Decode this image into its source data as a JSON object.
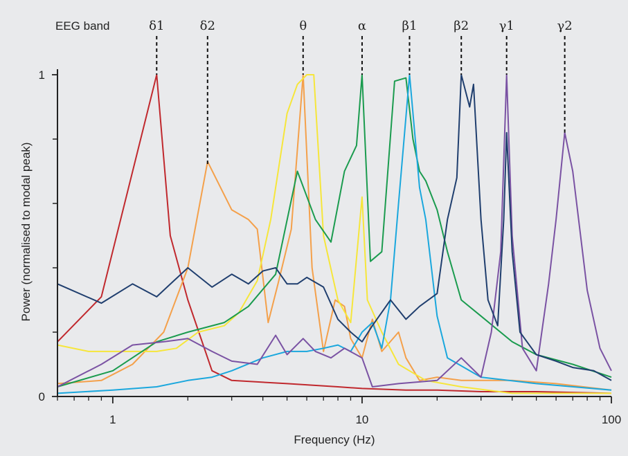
{
  "chart_data": {
    "type": "line",
    "title": "",
    "xlabel": "Frequency (Hz)",
    "ylabel": "Power (normalised to modal peak)",
    "xscale": "log",
    "xlim": [
      0.6,
      100
    ],
    "ylim": [
      0,
      1
    ],
    "x_tick_labels": [
      {
        "value": 1,
        "label": "1"
      },
      {
        "value": 10,
        "label": "10"
      },
      {
        "value": 100,
        "label": "100"
      }
    ],
    "y_tick_labels": [
      {
        "value": 0,
        "label": "0"
      },
      {
        "value": 1,
        "label": "1"
      }
    ],
    "y_minor_ticks": [
      0.2,
      0.4,
      0.6,
      0.8
    ],
    "band_header": "EEG band",
    "bands": [
      {
        "label": "δ1",
        "freq": 1.5,
        "peak": 1.0
      },
      {
        "label": "δ2",
        "freq": 2.4,
        "peak": 0.72
      },
      {
        "label": "θ",
        "freq": 5.8,
        "peak": 1.0
      },
      {
        "label": "α",
        "freq": 10,
        "peak": 1.0
      },
      {
        "label": "β1",
        "freq": 15.5,
        "peak": 1.0
      },
      {
        "label": "β2",
        "freq": 25,
        "peak": 1.0
      },
      {
        "label": "γ1",
        "freq": 38,
        "peak": 1.0
      },
      {
        "label": "γ2",
        "freq": 65,
        "peak": 0.82
      }
    ],
    "series": [
      {
        "color": "#c0282d",
        "points": [
          [
            0.6,
            0.17
          ],
          [
            0.9,
            0.31
          ],
          [
            1.5,
            1.0
          ],
          [
            1.7,
            0.5
          ],
          [
            2.0,
            0.3
          ],
          [
            2.5,
            0.08
          ],
          [
            3.0,
            0.05
          ],
          [
            5,
            0.04
          ],
          [
            8,
            0.03
          ],
          [
            10,
            0.025
          ],
          [
            15,
            0.02
          ],
          [
            20,
            0.02
          ],
          [
            30,
            0.015
          ],
          [
            50,
            0.015
          ],
          [
            100,
            0.01
          ]
        ]
      },
      {
        "color": "#f4a04a",
        "points": [
          [
            0.6,
            0.04
          ],
          [
            0.9,
            0.05
          ],
          [
            1.2,
            0.1
          ],
          [
            1.6,
            0.2
          ],
          [
            2.0,
            0.4
          ],
          [
            2.4,
            0.73
          ],
          [
            3.0,
            0.58
          ],
          [
            3.5,
            0.55
          ],
          [
            3.8,
            0.52
          ],
          [
            4.2,
            0.23
          ],
          [
            4.6,
            0.35
          ],
          [
            5.2,
            0.52
          ],
          [
            5.8,
            1.0
          ],
          [
            6.3,
            0.4
          ],
          [
            7.0,
            0.14
          ],
          [
            7.8,
            0.3
          ],
          [
            8.5,
            0.28
          ],
          [
            9.0,
            0.18
          ],
          [
            10,
            0.12
          ],
          [
            11,
            0.24
          ],
          [
            12,
            0.14
          ],
          [
            14,
            0.2
          ],
          [
            15,
            0.12
          ],
          [
            17,
            0.05
          ],
          [
            20,
            0.06
          ],
          [
            25,
            0.05
          ],
          [
            30,
            0.05
          ],
          [
            40,
            0.05
          ],
          [
            60,
            0.04
          ],
          [
            100,
            0.02
          ]
        ]
      },
      {
        "color": "#f6e63a",
        "points": [
          [
            0.6,
            0.16
          ],
          [
            0.8,
            0.14
          ],
          [
            1.0,
            0.14
          ],
          [
            1.5,
            0.14
          ],
          [
            1.8,
            0.15
          ],
          [
            2.2,
            0.2
          ],
          [
            2.8,
            0.22
          ],
          [
            3.2,
            0.26
          ],
          [
            3.8,
            0.36
          ],
          [
            4.3,
            0.55
          ],
          [
            5.0,
            0.88
          ],
          [
            5.5,
            0.97
          ],
          [
            6.0,
            1.0
          ],
          [
            6.4,
            1.0
          ],
          [
            7.0,
            0.5
          ],
          [
            8.0,
            0.3
          ],
          [
            9.0,
            0.23
          ],
          [
            10,
            0.62
          ],
          [
            10.5,
            0.3
          ],
          [
            12,
            0.2
          ],
          [
            14,
            0.1
          ],
          [
            18,
            0.05
          ],
          [
            25,
            0.03
          ],
          [
            40,
            0.01
          ],
          [
            100,
            0.01
          ]
        ]
      },
      {
        "color": "#1a9b4e",
        "points": [
          [
            0.6,
            0.03
          ],
          [
            1.0,
            0.08
          ],
          [
            1.5,
            0.17
          ],
          [
            2.0,
            0.2
          ],
          [
            2.8,
            0.23
          ],
          [
            3.5,
            0.28
          ],
          [
            4.5,
            0.38
          ],
          [
            5.5,
            0.7
          ],
          [
            6.5,
            0.55
          ],
          [
            7.5,
            0.48
          ],
          [
            8.5,
            0.7
          ],
          [
            9.5,
            0.78
          ],
          [
            10,
            1.0
          ],
          [
            10.8,
            0.42
          ],
          [
            12,
            0.45
          ],
          [
            13.5,
            0.98
          ],
          [
            15,
            0.99
          ],
          [
            16,
            0.8
          ],
          [
            17,
            0.7
          ],
          [
            18,
            0.67
          ],
          [
            20,
            0.58
          ],
          [
            22,
            0.45
          ],
          [
            25,
            0.3
          ],
          [
            30,
            0.25
          ],
          [
            40,
            0.17
          ],
          [
            50,
            0.13
          ],
          [
            70,
            0.1
          ],
          [
            100,
            0.06
          ]
        ]
      },
      {
        "color": "#1aa7dd",
        "points": [
          [
            0.6,
            0.01
          ],
          [
            1.0,
            0.02
          ],
          [
            1.5,
            0.03
          ],
          [
            2.0,
            0.05
          ],
          [
            2.5,
            0.06
          ],
          [
            3.0,
            0.08
          ],
          [
            4.0,
            0.12
          ],
          [
            5.0,
            0.14
          ],
          [
            6.0,
            0.14
          ],
          [
            7.0,
            0.15
          ],
          [
            8.0,
            0.16
          ],
          [
            9.0,
            0.14
          ],
          [
            10,
            0.2
          ],
          [
            11,
            0.23
          ],
          [
            12,
            0.15
          ],
          [
            13,
            0.3
          ],
          [
            14,
            0.6
          ],
          [
            15.5,
            1.0
          ],
          [
            17,
            0.65
          ],
          [
            18,
            0.55
          ],
          [
            20,
            0.25
          ],
          [
            22,
            0.12
          ],
          [
            30,
            0.06
          ],
          [
            50,
            0.04
          ],
          [
            100,
            0.02
          ]
        ]
      },
      {
        "color": "#7a52a3",
        "points": [
          [
            0.6,
            0.03
          ],
          [
            0.9,
            0.1
          ],
          [
            1.2,
            0.16
          ],
          [
            1.6,
            0.17
          ],
          [
            2.0,
            0.18
          ],
          [
            2.5,
            0.14
          ],
          [
            3.0,
            0.11
          ],
          [
            3.8,
            0.1
          ],
          [
            4.5,
            0.19
          ],
          [
            5.0,
            0.13
          ],
          [
            5.8,
            0.18
          ],
          [
            6.5,
            0.14
          ],
          [
            7.5,
            0.12
          ],
          [
            8.5,
            0.15
          ],
          [
            10,
            0.12
          ],
          [
            11,
            0.03
          ],
          [
            14,
            0.04
          ],
          [
            20,
            0.05
          ],
          [
            25,
            0.12
          ],
          [
            30,
            0.06
          ],
          [
            33,
            0.2
          ],
          [
            36,
            0.45
          ],
          [
            38,
            1.0
          ],
          [
            40,
            0.5
          ],
          [
            44,
            0.15
          ],
          [
            50,
            0.08
          ],
          [
            56,
            0.35
          ],
          [
            60,
            0.55
          ],
          [
            65,
            0.82
          ],
          [
            70,
            0.7
          ],
          [
            80,
            0.33
          ],
          [
            90,
            0.15
          ],
          [
            100,
            0.08
          ]
        ]
      },
      {
        "color": "#1f3e6e",
        "points": [
          [
            0.6,
            0.35
          ],
          [
            0.9,
            0.29
          ],
          [
            1.2,
            0.35
          ],
          [
            1.5,
            0.31
          ],
          [
            2.0,
            0.4
          ],
          [
            2.5,
            0.34
          ],
          [
            3.0,
            0.38
          ],
          [
            3.5,
            0.35
          ],
          [
            4.0,
            0.39
          ],
          [
            4.5,
            0.4
          ],
          [
            5.0,
            0.35
          ],
          [
            5.5,
            0.35
          ],
          [
            6.0,
            0.37
          ],
          [
            7.0,
            0.34
          ],
          [
            8.0,
            0.24
          ],
          [
            9.0,
            0.2
          ],
          [
            10,
            0.17
          ],
          [
            11,
            0.22
          ],
          [
            13,
            0.3
          ],
          [
            15,
            0.24
          ],
          [
            17,
            0.28
          ],
          [
            20,
            0.32
          ],
          [
            22,
            0.55
          ],
          [
            24,
            0.68
          ],
          [
            25,
            1.0
          ],
          [
            27,
            0.9
          ],
          [
            28,
            0.97
          ],
          [
            30,
            0.55
          ],
          [
            32,
            0.3
          ],
          [
            35,
            0.22
          ],
          [
            37,
            0.55
          ],
          [
            38,
            0.82
          ],
          [
            40,
            0.45
          ],
          [
            43,
            0.2
          ],
          [
            50,
            0.13
          ],
          [
            60,
            0.11
          ],
          [
            70,
            0.09
          ],
          [
            85,
            0.08
          ],
          [
            100,
            0.05
          ]
        ]
      }
    ]
  }
}
